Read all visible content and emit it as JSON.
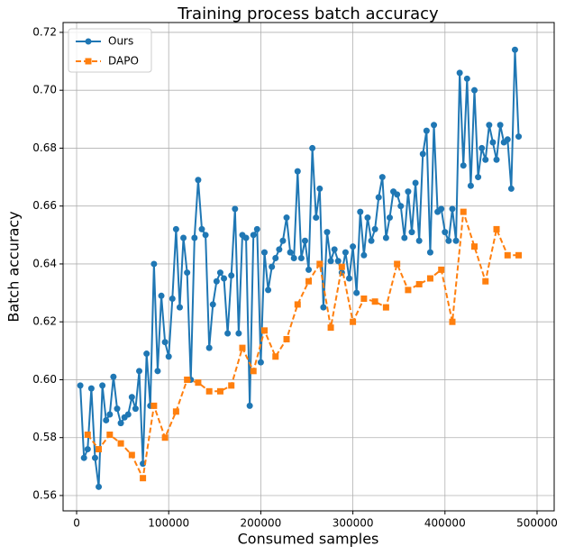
{
  "chart_data": {
    "type": "line",
    "title": "Training process batch accuracy",
    "xlabel": "Consumed samples",
    "ylabel": "Batch accuracy",
    "xlim": [
      -14700,
      518600
    ],
    "ylim": [
      0.5547,
      0.7234
    ],
    "xticks": [
      0,
      100000,
      200000,
      300000,
      400000,
      500000
    ],
    "yticks": [
      0.56,
      0.58,
      {
        "value": 0.6,
        "label": "0.60"
      },
      0.62,
      0.64,
      0.66,
      0.68,
      {
        "value": 0.7,
        "label": "0.70"
      },
      0.72
    ],
    "grid": true,
    "legend": "upper left",
    "series": [
      {
        "name": "Ours",
        "color": "#1f77b4",
        "linestyle": "solid",
        "marker": "circle",
        "x": [
          4000,
          8000,
          12000,
          16000,
          20000,
          24000,
          28000,
          32000,
          36000,
          40000,
          44000,
          48000,
          52000,
          56000,
          60000,
          64000,
          68000,
          72000,
          76000,
          80000,
          84000,
          88000,
          92000,
          96000,
          100000,
          104000,
          108000,
          112000,
          116000,
          120000,
          124000,
          128000,
          132000,
          136000,
          140000,
          144000,
          148000,
          152000,
          156000,
          160000,
          164000,
          168000,
          172000,
          176000,
          180000,
          184000,
          188000,
          192000,
          196000,
          200000,
          204000,
          208000,
          212000,
          216000,
          220000,
          224000,
          228000,
          232000,
          236000,
          240000,
          244000,
          248000,
          252000,
          256000,
          260000,
          264000,
          268000,
          272000,
          276000,
          280000,
          284000,
          288000,
          292000,
          296000,
          300000,
          304000,
          308000,
          312000,
          316000,
          320000,
          324000,
          328000,
          332000,
          336000,
          340000,
          344000,
          348000,
          352000,
          356000,
          360000,
          364000,
          368000,
          372000,
          376000,
          380000,
          384000,
          388000,
          392000,
          396000,
          400000,
          404000,
          408000,
          412000,
          416000,
          420000,
          424000,
          428000,
          432000,
          436000,
          440000,
          444000,
          448000,
          452000,
          456000,
          460000,
          464000,
          468000,
          472000,
          476000,
          480000
        ],
        "values": [
          0.598,
          0.573,
          0.576,
          0.597,
          0.573,
          0.563,
          0.598,
          0.586,
          0.588,
          0.601,
          0.59,
          0.585,
          0.587,
          0.588,
          0.594,
          0.59,
          0.603,
          0.571,
          0.609,
          0.591,
          0.64,
          0.603,
          0.629,
          0.613,
          0.608,
          0.628,
          0.652,
          0.625,
          0.649,
          0.637,
          0.6,
          0.649,
          0.669,
          0.652,
          0.65,
          0.611,
          0.626,
          0.634,
          0.637,
          0.635,
          0.616,
          0.636,
          0.659,
          0.616,
          0.65,
          0.649,
          0.591,
          0.65,
          0.652,
          0.606,
          0.644,
          0.631,
          0.639,
          0.642,
          0.645,
          0.648,
          0.656,
          0.644,
          0.642,
          0.672,
          0.642,
          0.648,
          0.638,
          0.68,
          0.656,
          0.666,
          0.625,
          0.651,
          0.641,
          0.645,
          0.641,
          0.637,
          0.644,
          0.635,
          0.646,
          0.63,
          0.658,
          0.643,
          0.656,
          0.648,
          0.652,
          0.663,
          0.67,
          0.649,
          0.656,
          0.665,
          0.664,
          0.66,
          0.649,
          0.665,
          0.651,
          0.668,
          0.648,
          0.678,
          0.686,
          0.644,
          0.688,
          0.658,
          0.659,
          0.651,
          0.648,
          0.659,
          0.648,
          0.706,
          0.674,
          0.704,
          0.667,
          0.7,
          0.67,
          0.68,
          0.676,
          0.688,
          0.682,
          0.676,
          0.688,
          0.682,
          0.683,
          0.666,
          0.714,
          0.684
        ]
      },
      {
        "name": "DAPO",
        "color": "#ff7f0e",
        "linestyle": "dashed",
        "marker": "square",
        "x": [
          12000,
          24000,
          36000,
          48000,
          60000,
          72000,
          84000,
          96000,
          108000,
          120000,
          132000,
          144000,
          156000,
          168000,
          180000,
          192000,
          204000,
          216000,
          228000,
          240000,
          252000,
          264000,
          276000,
          288000,
          300000,
          312000,
          324000,
          336000,
          348000,
          360000,
          372000,
          384000,
          396000,
          408000,
          420000,
          432000,
          444000,
          456000,
          468000,
          480000
        ],
        "values": [
          0.581,
          0.576,
          0.581,
          0.578,
          0.574,
          0.566,
          0.591,
          0.58,
          0.589,
          0.6,
          0.599,
          0.596,
          0.596,
          0.598,
          0.611,
          0.603,
          0.617,
          0.608,
          0.614,
          0.626,
          0.634,
          0.64,
          0.618,
          0.639,
          0.62,
          0.628,
          0.627,
          0.625,
          0.64,
          0.631,
          0.633,
          0.635,
          0.638,
          0.62,
          0.658,
          0.646,
          0.634,
          0.652,
          0.643,
          0.643
        ]
      }
    ]
  }
}
